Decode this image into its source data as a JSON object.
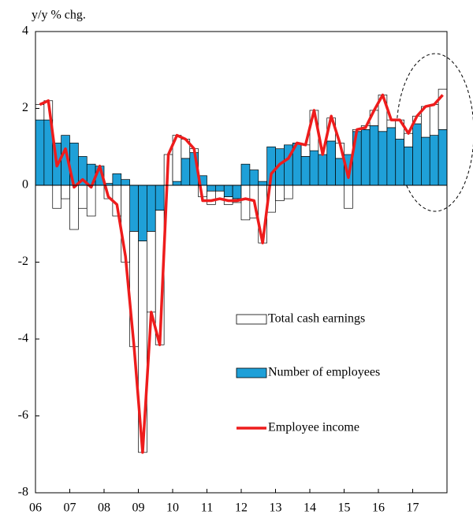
{
  "chart_data": {
    "type": "stacked-bar-line",
    "y_label": "y/y % chg.",
    "categories": [
      "06",
      null,
      null,
      null,
      "07",
      null,
      null,
      null,
      "08",
      null,
      null,
      null,
      "09",
      null,
      null,
      null,
      "10",
      null,
      null,
      null,
      "11",
      null,
      null,
      null,
      "12",
      null,
      null,
      null,
      "13",
      null,
      null,
      null,
      "14",
      null,
      null,
      null,
      "15",
      null,
      null,
      null,
      "16",
      null,
      null,
      null,
      "17",
      null,
      null,
      null
    ],
    "ylim": [
      -8,
      4
    ],
    "yticks": [
      -8,
      -6,
      -4,
      -2,
      0,
      2,
      4
    ],
    "series": [
      {
        "name": "Number of employees",
        "kind": "bar",
        "color": "#1fa0d8",
        "values": [
          1.7,
          1.7,
          1.1,
          1.3,
          1.1,
          0.75,
          0.55,
          0.5,
          0.05,
          0.3,
          0.15,
          -1.2,
          -1.45,
          -1.2,
          -0.65,
          0.0,
          0.1,
          0.7,
          0.85,
          0.25,
          -0.15,
          -0.15,
          -0.3,
          -0.35,
          0.55,
          0.4,
          0.1,
          1.0,
          0.95,
          1.05,
          1.1,
          0.75,
          0.9,
          0.8,
          1.15,
          0.7,
          0.8,
          1.4,
          1.45,
          1.55,
          1.4,
          1.5,
          1.2,
          1.0,
          1.6,
          1.25,
          1.3,
          1.45
        ]
      },
      {
        "name": "Total cash earnings",
        "kind": "bar",
        "color": "#ffffff",
        "values": [
          0.4,
          0.5,
          -0.6,
          -0.35,
          -1.15,
          -0.6,
          -0.8,
          0.0,
          -0.35,
          -0.8,
          -2.0,
          -3.0,
          -5.5,
          -2.1,
          -3.5,
          0.8,
          1.2,
          0.5,
          0.1,
          -0.3,
          -0.35,
          -0.2,
          -0.2,
          -0.1,
          -0.9,
          -0.85,
          -1.5,
          -0.7,
          -0.4,
          -0.35,
          0.0,
          0.3,
          1.05,
          0.0,
          0.6,
          0.4,
          -0.6,
          0.05,
          0.1,
          0.4,
          0.95,
          0.2,
          0.5,
          0.35,
          0.2,
          0.8,
          0.8,
          1.05
        ]
      },
      {
        "name": "Employee income",
        "kind": "line",
        "color": "#ee1c1c",
        "values": [
          2.1,
          2.2,
          0.5,
          0.95,
          -0.05,
          0.15,
          -0.05,
          0.5,
          -0.3,
          -0.5,
          -1.85,
          -4.2,
          -6.95,
          -3.3,
          -4.15,
          0.8,
          1.3,
          1.2,
          0.95,
          -0.4,
          -0.4,
          -0.35,
          -0.4,
          -0.4,
          -0.35,
          -0.4,
          -1.5,
          0.3,
          0.55,
          0.7,
          1.1,
          1.05,
          1.95,
          0.8,
          1.8,
          1.1,
          0.2,
          1.45,
          1.5,
          1.95,
          2.35,
          1.7,
          1.7,
          1.35,
          1.8,
          2.05,
          2.1,
          2.35
        ]
      }
    ]
  }
}
